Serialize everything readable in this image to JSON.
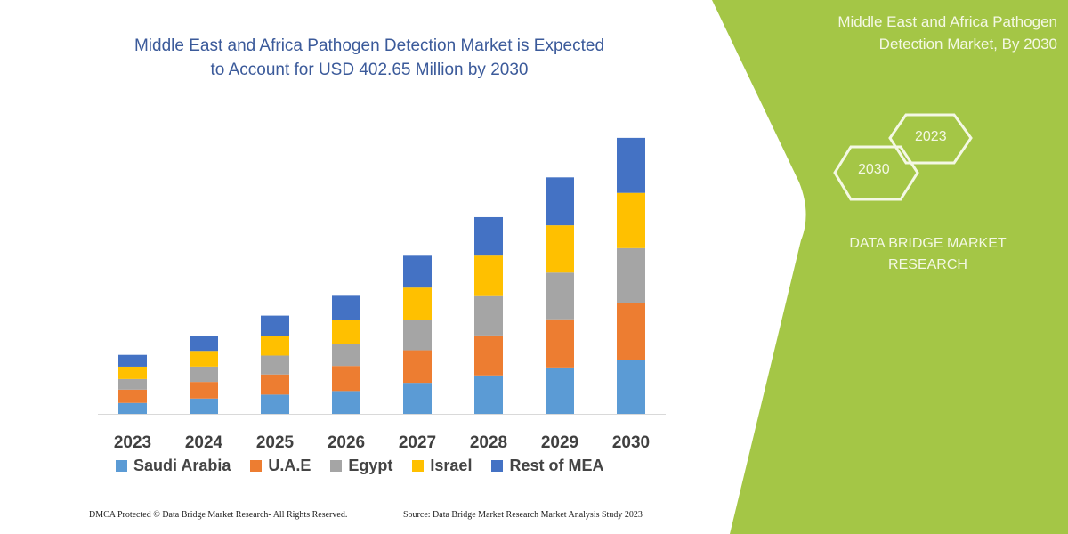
{
  "header": {
    "title_line1": "Middle East and Africa Pathogen Detection Market is Expected",
    "title_line2": "to Account for USD 402.65 Million by 2030"
  },
  "side_panel": {
    "title_line1": "Middle East and Africa Pathogen",
    "title_line2": "Detection Market, By 2030",
    "hex_year_a": "2023",
    "hex_year_b": "2030",
    "brand_line1": "DATA BRIDGE MARKET",
    "brand_line2": "RESEARCH",
    "color": "#a4c646"
  },
  "footer": {
    "copyright": "DMCA Protected © Data Bridge Market Research-  All Rights Reserved.",
    "source": "Source: Data Bridge Market Research  Market Analysis Study 2023"
  },
  "chart_data": {
    "type": "bar",
    "stacked": true,
    "title": "Middle East and Africa Pathogen Detection Market is Expected to Account for USD 402.65 Million by 2030",
    "categories": [
      "2023",
      "2024",
      "2025",
      "2026",
      "2027",
      "2028",
      "2029",
      "2030"
    ],
    "series": [
      {
        "name": "Saudi Arabia",
        "color": "#5b9bd5",
        "values": [
          15.9,
          22.4,
          28.1,
          33.3,
          45.3,
          56.1,
          67.7,
          78.6
        ]
      },
      {
        "name": "U.A.E",
        "color": "#ed7d31",
        "values": [
          19.4,
          24.2,
          29.4,
          36.6,
          47.5,
          58.3,
          70.3,
          82.5
        ]
      },
      {
        "name": "Egypt",
        "color": "#a5a5a5",
        "values": [
          15.5,
          22.4,
          27.6,
          31.5,
          44.4,
          57.4,
          68.2,
          80.7
        ]
      },
      {
        "name": "Israel",
        "color": "#ffc000",
        "values": [
          18.1,
          22.9,
          28.5,
          35.9,
          47.0,
          59.2,
          69.0,
          80.7
        ]
      },
      {
        "name": "Rest of MEA",
        "color": "#4472c4",
        "values": [
          17.2,
          22.0,
          29.8,
          35.0,
          46.6,
          56.1,
          69.9,
          80.3
        ]
      }
    ],
    "ylim": [
      0,
      402.65
    ],
    "xlabel": "",
    "ylabel": "",
    "grid": false,
    "legend_position": "bottom"
  }
}
